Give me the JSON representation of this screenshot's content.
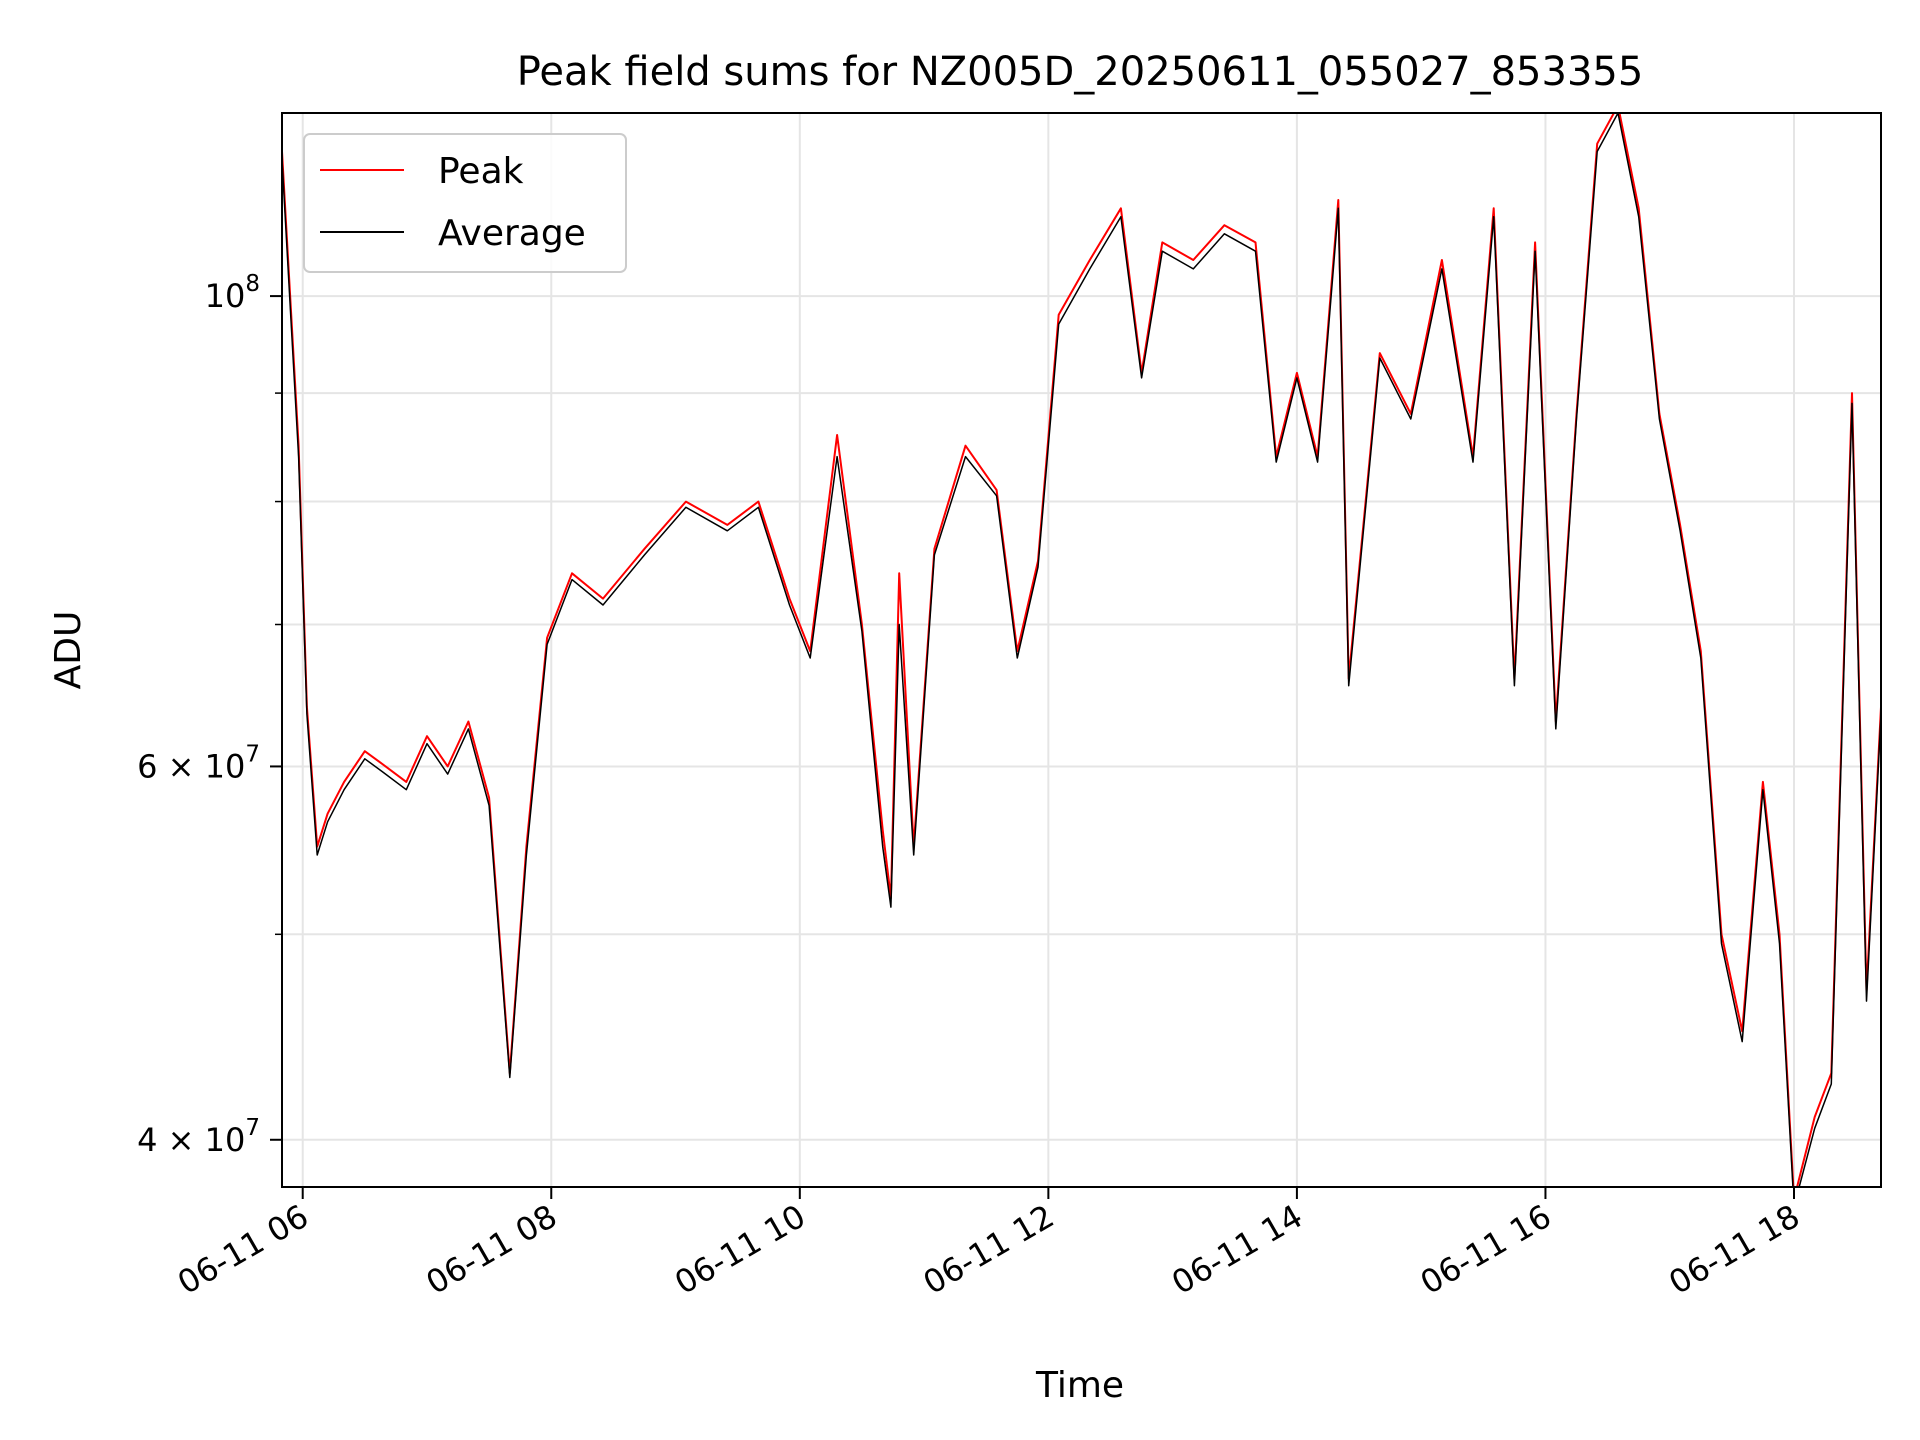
{
  "chart_data": {
    "type": "line",
    "title": "Peak field sums for NZ005D_20250611_055027_853355",
    "xlabel": "Time",
    "ylabel": "ADU",
    "x_axis_type": "datetime",
    "xlim": [
      "2025-06-11 05:50",
      "2025-06-11 18:42"
    ],
    "ylim": [
      38000000,
      122000000
    ],
    "yscale": "log",
    "grid": true,
    "legend_position": "top-left",
    "x_ticks": [
      {
        "value": "2025-06-11 06:00",
        "label": "06-11 06"
      },
      {
        "value": "2025-06-11 08:00",
        "label": "06-11 08"
      },
      {
        "value": "2025-06-11 10:00",
        "label": "06-11 10"
      },
      {
        "value": "2025-06-11 12:00",
        "label": "06-11 12"
      },
      {
        "value": "2025-06-11 14:00",
        "label": "06-11 14"
      },
      {
        "value": "2025-06-11 16:00",
        "label": "06-11 16"
      },
      {
        "value": "2025-06-11 18:00",
        "label": "06-11 18"
      }
    ],
    "y_major_ticks": [
      {
        "value": 100000000,
        "base": "10",
        "exp": "8"
      },
      {
        "value": 60000000,
        "base": "6 × 10",
        "exp": "7"
      },
      {
        "value": 40000000,
        "base": "4 × 10",
        "exp": "7"
      }
    ],
    "y_minor_ticks": [
      50000000,
      70000000,
      80000000,
      90000000
    ],
    "series": [
      {
        "name": "Peak",
        "color": "#ff0000",
        "x": [
          "2025-06-11 05:50",
          "2025-06-11 05:58",
          "2025-06-11 06:02",
          "2025-06-11 06:07",
          "2025-06-11 06:12",
          "2025-06-11 06:20",
          "2025-06-11 06:30",
          "2025-06-11 06:40",
          "2025-06-11 06:50",
          "2025-06-11 07:00",
          "2025-06-11 07:10",
          "2025-06-11 07:20",
          "2025-06-11 07:30",
          "2025-06-11 07:40",
          "2025-06-11 07:48",
          "2025-06-11 07:58",
          "2025-06-11 08:10",
          "2025-06-11 08:25",
          "2025-06-11 08:45",
          "2025-06-11 09:05",
          "2025-06-11 09:25",
          "2025-06-11 09:40",
          "2025-06-11 09:55",
          "2025-06-11 10:05",
          "2025-06-11 10:18",
          "2025-06-11 10:30",
          "2025-06-11 10:40",
          "2025-06-11 10:44",
          "2025-06-11 10:48",
          "2025-06-11 10:55",
          "2025-06-11 11:05",
          "2025-06-11 11:20",
          "2025-06-11 11:35",
          "2025-06-11 11:45",
          "2025-06-11 11:55",
          "2025-06-11 12:05",
          "2025-06-11 12:20",
          "2025-06-11 12:35",
          "2025-06-11 12:45",
          "2025-06-11 12:55",
          "2025-06-11 13:10",
          "2025-06-11 13:25",
          "2025-06-11 13:40",
          "2025-06-11 13:50",
          "2025-06-11 14:00",
          "2025-06-11 14:10",
          "2025-06-11 14:20",
          "2025-06-11 14:25",
          "2025-06-11 14:40",
          "2025-06-11 14:55",
          "2025-06-11 15:10",
          "2025-06-11 15:25",
          "2025-06-11 15:35",
          "2025-06-11 15:45",
          "2025-06-11 15:55",
          "2025-06-11 16:05",
          "2025-06-11 16:15",
          "2025-06-11 16:25",
          "2025-06-11 16:35",
          "2025-06-11 16:45",
          "2025-06-11 16:55",
          "2025-06-11 17:05",
          "2025-06-11 17:15",
          "2025-06-11 17:25",
          "2025-06-11 17:35",
          "2025-06-11 17:45",
          "2025-06-11 17:53",
          "2025-06-11 18:00",
          "2025-06-11 18:10",
          "2025-06-11 18:18",
          "2025-06-11 18:28",
          "2025-06-11 18:35",
          "2025-06-11 18:42"
        ],
        "y": [
          117000000,
          85000000,
          64000000,
          55000000,
          57000000,
          59000000,
          61000000,
          60000000,
          59000000,
          62000000,
          60000000,
          63000000,
          58000000,
          43000000,
          55000000,
          69000000,
          74000000,
          72000000,
          76000000,
          80000000,
          78000000,
          80000000,
          72000000,
          68000000,
          86000000,
          70000000,
          56000000,
          52000000,
          74000000,
          55000000,
          76000000,
          85000000,
          81000000,
          68000000,
          75000000,
          98000000,
          104000000,
          110000000,
          92000000,
          106000000,
          104000000,
          108000000,
          106000000,
          84000000,
          92000000,
          84000000,
          111000000,
          66000000,
          94000000,
          88000000,
          104000000,
          84000000,
          110000000,
          66000000,
          106000000,
          63000000,
          88000000,
          118000000,
          123000000,
          110000000,
          88000000,
          78000000,
          68000000,
          50000000,
          45000000,
          59000000,
          50000000,
          37500000,
          41000000,
          43000000,
          90000000,
          47000000,
          64000000
        ]
      },
      {
        "name": "Average",
        "color": "#000000",
        "x": [
          "2025-06-11 05:50",
          "2025-06-11 05:58",
          "2025-06-11 06:02",
          "2025-06-11 06:07",
          "2025-06-11 06:12",
          "2025-06-11 06:20",
          "2025-06-11 06:30",
          "2025-06-11 06:40",
          "2025-06-11 06:50",
          "2025-06-11 07:00",
          "2025-06-11 07:10",
          "2025-06-11 07:20",
          "2025-06-11 07:30",
          "2025-06-11 07:40",
          "2025-06-11 07:48",
          "2025-06-11 07:58",
          "2025-06-11 08:10",
          "2025-06-11 08:25",
          "2025-06-11 08:45",
          "2025-06-11 09:05",
          "2025-06-11 09:25",
          "2025-06-11 09:40",
          "2025-06-11 09:55",
          "2025-06-11 10:05",
          "2025-06-11 10:18",
          "2025-06-11 10:30",
          "2025-06-11 10:40",
          "2025-06-11 10:44",
          "2025-06-11 10:48",
          "2025-06-11 10:55",
          "2025-06-11 11:05",
          "2025-06-11 11:20",
          "2025-06-11 11:35",
          "2025-06-11 11:45",
          "2025-06-11 11:55",
          "2025-06-11 12:05",
          "2025-06-11 12:20",
          "2025-06-11 12:35",
          "2025-06-11 12:45",
          "2025-06-11 12:55",
          "2025-06-11 13:10",
          "2025-06-11 13:25",
          "2025-06-11 13:40",
          "2025-06-11 13:50",
          "2025-06-11 14:00",
          "2025-06-11 14:10",
          "2025-06-11 14:20",
          "2025-06-11 14:25",
          "2025-06-11 14:40",
          "2025-06-11 14:55",
          "2025-06-11 15:10",
          "2025-06-11 15:25",
          "2025-06-11 15:35",
          "2025-06-11 15:45",
          "2025-06-11 15:55",
          "2025-06-11 16:05",
          "2025-06-11 16:15",
          "2025-06-11 16:25",
          "2025-06-11 16:35",
          "2025-06-11 16:45",
          "2025-06-11 16:55",
          "2025-06-11 17:05",
          "2025-06-11 17:15",
          "2025-06-11 17:25",
          "2025-06-11 17:35",
          "2025-06-11 17:45",
          "2025-06-11 17:53",
          "2025-06-11 18:00",
          "2025-06-11 18:10",
          "2025-06-11 18:18",
          "2025-06-11 18:28",
          "2025-06-11 18:35",
          "2025-06-11 18:42"
        ],
        "y": [
          116000000,
          84000000,
          63500000,
          54500000,
          56500000,
          58500000,
          60500000,
          59500000,
          58500000,
          61500000,
          59500000,
          62500000,
          57500000,
          42800000,
          54500000,
          68500000,
          73500000,
          71500000,
          75500000,
          79500000,
          77500000,
          79500000,
          71500000,
          67500000,
          84000000,
          69500000,
          55000000,
          51500000,
          70000000,
          54500000,
          75500000,
          84000000,
          80500000,
          67500000,
          74500000,
          97000000,
          103000000,
          109000000,
          91500000,
          105000000,
          103000000,
          107000000,
          105000000,
          83500000,
          91500000,
          83500000,
          110000000,
          65500000,
          93500000,
          87500000,
          103000000,
          83500000,
          109000000,
          65500000,
          105000000,
          62500000,
          87500000,
          117000000,
          122000000,
          109000000,
          87500000,
          77500000,
          67500000,
          49500000,
          44500000,
          58500000,
          49500000,
          37200000,
          40500000,
          42500000,
          89000000,
          46500000,
          63500000
        ]
      }
    ]
  }
}
